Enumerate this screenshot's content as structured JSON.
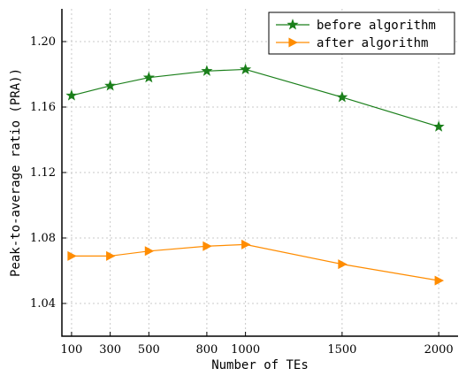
{
  "chart_data": {
    "type": "line",
    "x": [
      100,
      300,
      500,
      800,
      1000,
      1500,
      2000
    ],
    "x_tick_labels": [
      "100",
      "300",
      "500",
      "800",
      "1000",
      "1500",
      "2000"
    ],
    "xlabel": "Number of TEs",
    "ylabel": "Peak-to-average ratio (PRA))",
    "xlim": [
      50,
      2100
    ],
    "ylim": [
      1.02,
      1.22
    ],
    "y_ticks": [
      1.04,
      1.08,
      1.12,
      1.16,
      1.2
    ],
    "y_tick_labels": [
      "1.04",
      "1.08",
      "1.12",
      "1.16",
      "1.20"
    ],
    "grid": true,
    "legend_position": "top-right",
    "series": [
      {
        "name": "before algorithm",
        "color": "#1a7f1a",
        "marker": "star",
        "values": [
          1.167,
          1.173,
          1.178,
          1.182,
          1.183,
          1.166,
          1.148
        ]
      },
      {
        "name": "after algorithm",
        "color": "#ff8c00",
        "marker": "triangle-right",
        "values": [
          1.069,
          1.069,
          1.072,
          1.075,
          1.076,
          1.064,
          1.054
        ]
      }
    ]
  }
}
